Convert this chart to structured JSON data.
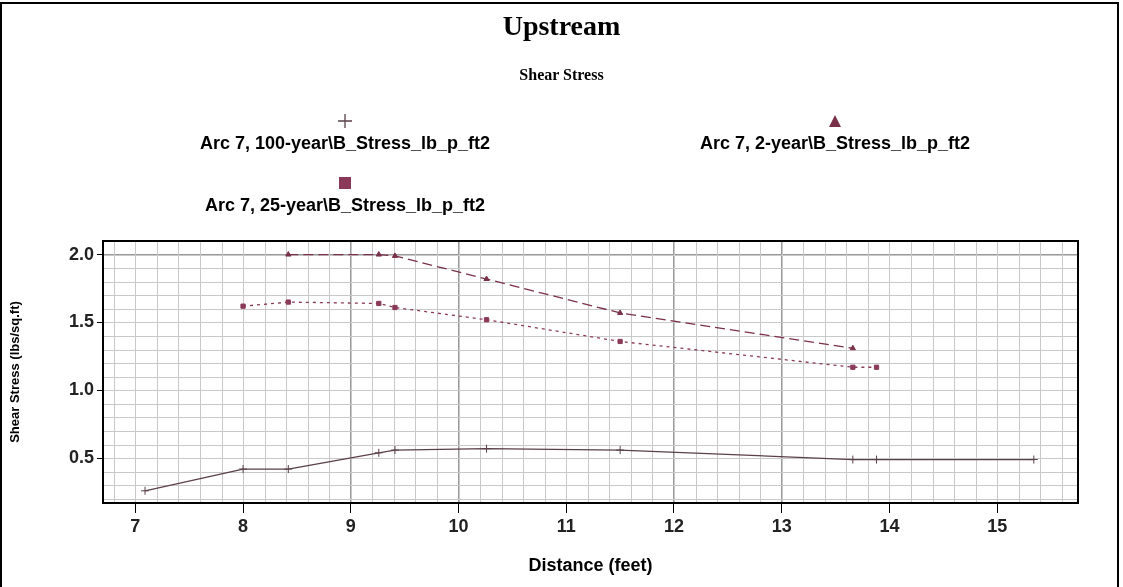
{
  "chart_data": {
    "type": "line",
    "title": "Upstream",
    "subtitle": "Shear Stress",
    "xlabel": "Distance (feet)",
    "ylabel": "Shear Stress (lbs/sq.ft)",
    "xlim": [
      6.7,
      15.75
    ],
    "xticks": [
      7,
      8,
      9,
      10,
      11,
      12,
      13,
      14,
      15
    ],
    "ylim": [
      0.17,
      2.1
    ],
    "yticks": [
      0.5,
      {
        "value": 1,
        "label": "1.0"
      },
      1.5,
      {
        "value": 2,
        "label": "2.0"
      }
    ],
    "grid": true,
    "legend": "top",
    "series": [
      {
        "name": "Arc 7, 100-year\\B_Stress_lb_p_ft2",
        "color": "#5a4048",
        "marker": "cross",
        "line_style": "solid",
        "x": [
          7.09,
          8.0,
          8.42,
          9.26,
          9.41,
          10.26,
          11.5,
          13.66,
          13.88,
          15.34
        ],
        "values": [
          0.26,
          0.42,
          0.42,
          0.54,
          0.56,
          0.57,
          0.56,
          0.49,
          0.49,
          0.49
        ]
      },
      {
        "name": "Arc 7, 2-year\\B_Stress_lb_p_ft2",
        "color": "#7a3048",
        "marker": "triangle",
        "line_style": "dashed",
        "x": [
          8.42,
          9.26,
          9.41,
          10.26,
          11.5,
          13.66
        ],
        "values": [
          2.0,
          2.0,
          1.99,
          1.82,
          1.57,
          1.31
        ]
      },
      {
        "name": "Arc 7, 25-year\\B_Stress_lb_p_ft2",
        "color": "#8a3a58",
        "marker": "square",
        "line_style": "dotted",
        "x": [
          8.0,
          8.42,
          9.26,
          9.41,
          10.26,
          11.5,
          13.66,
          13.88
        ],
        "values": [
          1.62,
          1.65,
          1.64,
          1.61,
          1.52,
          1.36,
          1.17,
          1.17
        ]
      }
    ]
  }
}
